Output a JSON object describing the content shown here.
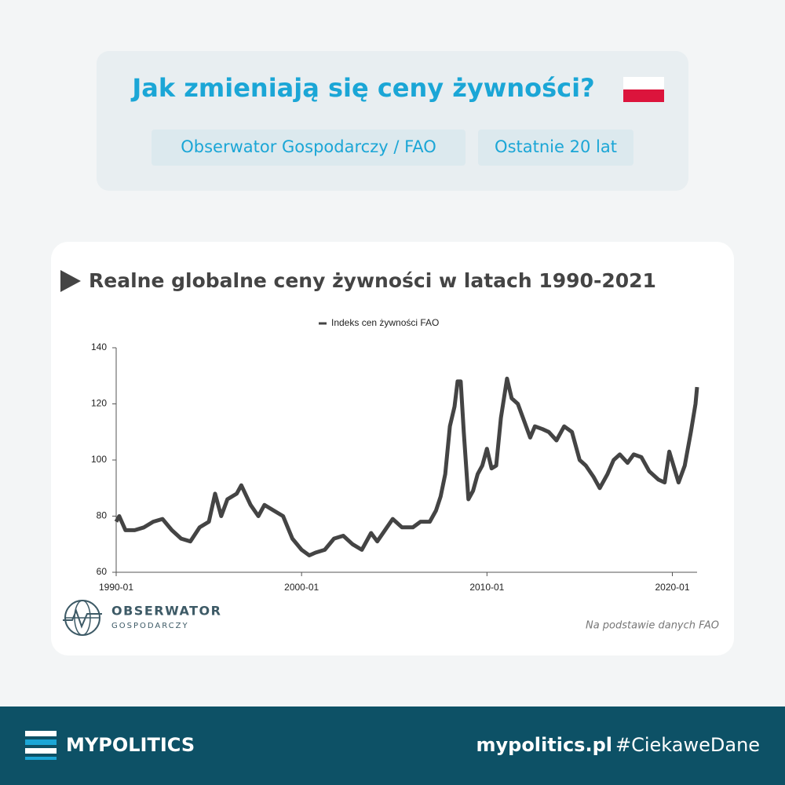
{
  "header": {
    "title": "Jak zmieniają się ceny żywności?",
    "tags": [
      "Obserwator Gospodarczy / FAO",
      "Ostatnie 20 lat"
    ]
  },
  "chart_data": {
    "type": "line",
    "title": "Realne globalne ceny żywności w latach 1990-2021",
    "x": [
      "1990-01",
      "1990-03",
      "1990-07",
      "1991-01",
      "1991-07",
      "1992-01",
      "1992-07",
      "1993-01",
      "1993-07",
      "1994-01",
      "1994-07",
      "1995-01",
      "1995-05",
      "1995-09",
      "1996-01",
      "1996-07",
      "1996-10",
      "1997-04",
      "1997-09",
      "1998-01",
      "1998-07",
      "1999-01",
      "1999-07",
      "2000-01",
      "2000-06",
      "2000-10",
      "2001-04",
      "2001-10",
      "2002-04",
      "2002-10",
      "2003-04",
      "2003-10",
      "2004-02",
      "2004-07",
      "2004-12",
      "2005-06",
      "2006-01",
      "2006-06",
      "2006-12",
      "2007-04",
      "2007-07",
      "2007-10",
      "2008-01",
      "2008-04",
      "2008-06",
      "2008-08",
      "2008-10",
      "2009-01",
      "2009-04",
      "2009-07",
      "2009-10",
      "2010-01",
      "2010-04",
      "2010-07",
      "2010-10",
      "2011-02",
      "2011-05",
      "2011-09",
      "2012-01",
      "2012-05",
      "2012-08",
      "2013-01",
      "2013-05",
      "2013-10",
      "2014-03",
      "2014-08",
      "2015-01",
      "2015-05",
      "2015-10",
      "2016-02",
      "2016-07",
      "2016-11",
      "2017-03",
      "2017-08",
      "2017-12",
      "2018-05",
      "2018-10",
      "2019-04",
      "2019-08",
      "2019-11",
      "2020-05",
      "2020-09",
      "2021-01",
      "2021-04",
      "2021-05"
    ],
    "series": [
      {
        "name": "Indeks cen żywności FAO",
        "color": "#444444",
        "values": [
          78,
          80,
          75,
          75,
          76,
          78,
          79,
          75,
          72,
          71,
          76,
          78,
          88,
          80,
          86,
          88,
          91,
          84,
          80,
          84,
          82,
          80,
          72,
          68,
          66,
          67,
          68,
          72,
          73,
          70,
          68,
          74,
          71,
          75,
          79,
          76,
          76,
          78,
          78,
          82,
          87,
          95,
          112,
          119,
          128,
          128,
          110,
          86,
          89,
          95,
          98,
          104,
          97,
          98,
          115,
          129,
          122,
          120,
          114,
          108,
          112,
          111,
          110,
          107,
          112,
          110,
          100,
          98,
          94,
          90,
          95,
          100,
          102,
          99,
          102,
          101,
          96,
          93,
          92,
          103,
          92,
          98,
          110,
          120,
          126
        ]
      }
    ],
    "xlim": [
      "1990-01",
      "2021-05"
    ],
    "xticks": [
      "1990-01",
      "2000-01",
      "2010-01",
      "2020-01"
    ],
    "ylim": [
      60,
      140
    ],
    "yticks": [
      60,
      80,
      100,
      120,
      140
    ],
    "legend": "top"
  },
  "logo": {
    "name": "OBSERWATOR",
    "subtitle": "GOSPODARCZY"
  },
  "source": "Na podstawie danych FAO",
  "footer": {
    "brand": "MYPOLITICS",
    "site": "mypolitics.pl",
    "hashtag": "#CiekaweDane"
  }
}
